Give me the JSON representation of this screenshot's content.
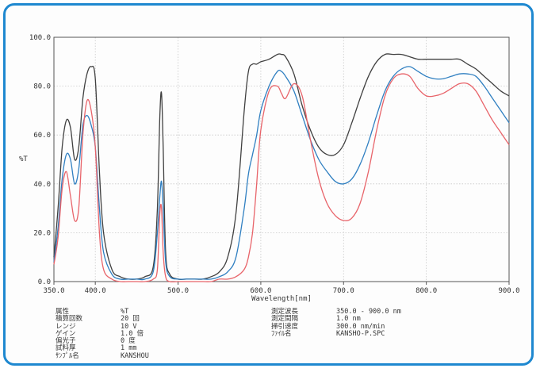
{
  "chart_data": {
    "type": "line",
    "title": "",
    "xlabel": "Wavelength[nm]",
    "ylabel": "%T",
    "xlim": [
      350,
      900
    ],
    "ylim": [
      0,
      100
    ],
    "xticks": [
      "350.0",
      "400.0",
      "500.0",
      "600.0",
      "700.0",
      "800.0",
      "900.0"
    ],
    "yticks": [
      "0.0",
      "20.0",
      "40.0",
      "60.0",
      "80.0",
      "100.0"
    ],
    "grid": true,
    "series": [
      {
        "color": "#404040",
        "x": [
          350,
          355,
          360,
          365,
          370,
          375,
          380,
          385,
          390,
          395,
          400,
          405,
          410,
          420,
          430,
          440,
          450,
          460,
          470,
          475,
          478,
          480,
          482,
          485,
          490,
          500,
          510,
          520,
          530,
          540,
          550,
          560,
          570,
          580,
          585,
          590,
          595,
          600,
          610,
          620,
          625,
          630,
          640,
          650,
          660,
          670,
          680,
          690,
          700,
          710,
          720,
          730,
          740,
          750,
          760,
          770,
          780,
          790,
          800,
          810,
          820,
          830,
          840,
          850,
          860,
          870,
          880,
          890,
          900
        ],
        "y": [
          10,
          30,
          55,
          66,
          63,
          50,
          55,
          75,
          85,
          88,
          83,
          45,
          20,
          5,
          2,
          1,
          1,
          2,
          6,
          30,
          68,
          77,
          55,
          12,
          3,
          1,
          1,
          1,
          1,
          2,
          4,
          10,
          28,
          70,
          86,
          89,
          89,
          90,
          91,
          93,
          93,
          92,
          85,
          72,
          62,
          55,
          52,
          52,
          56,
          65,
          75,
          84,
          90,
          93,
          93,
          93,
          92,
          91,
          91,
          91,
          91,
          91,
          91,
          89,
          87,
          84,
          81,
          78,
          76
        ]
      },
      {
        "color": "#2f7fc1",
        "x": [
          350,
          355,
          360,
          365,
          370,
          375,
          380,
          385,
          390,
          395,
          400,
          405,
          410,
          420,
          430,
          440,
          450,
          460,
          470,
          475,
          478,
          480,
          482,
          485,
          490,
          500,
          510,
          520,
          530,
          540,
          550,
          560,
          570,
          580,
          585,
          590,
          595,
          600,
          610,
          620,
          625,
          630,
          640,
          650,
          660,
          670,
          680,
          690,
          700,
          710,
          720,
          730,
          740,
          750,
          760,
          770,
          780,
          790,
          800,
          810,
          820,
          830,
          840,
          850,
          860,
          870,
          880,
          890,
          900
        ],
        "y": [
          8,
          22,
          42,
          52,
          50,
          40,
          46,
          64,
          68,
          64,
          55,
          30,
          12,
          3,
          1,
          1,
          1,
          1,
          4,
          20,
          35,
          41,
          30,
          8,
          2,
          1,
          1,
          1,
          1,
          1,
          2,
          4,
          10,
          30,
          44,
          52,
          60,
          70,
          80,
          86,
          86,
          84,
          78,
          68,
          58,
          50,
          45,
          41,
          40,
          42,
          48,
          57,
          68,
          78,
          84,
          87,
          88,
          86,
          84,
          83,
          83,
          84,
          85,
          85,
          84,
          80,
          75,
          70,
          65
        ]
      },
      {
        "color": "#e8646a",
        "x": [
          350,
          355,
          360,
          365,
          370,
          375,
          380,
          385,
          390,
          395,
          400,
          405,
          410,
          420,
          430,
          440,
          450,
          460,
          470,
          475,
          478,
          480,
          482,
          485,
          490,
          500,
          510,
          520,
          530,
          540,
          550,
          560,
          570,
          580,
          585,
          590,
          595,
          600,
          610,
          620,
          625,
          630,
          640,
          650,
          660,
          670,
          680,
          690,
          700,
          710,
          720,
          730,
          740,
          750,
          760,
          770,
          780,
          790,
          800,
          810,
          820,
          830,
          840,
          850,
          860,
          870,
          880,
          890,
          900
        ],
        "y": [
          7,
          18,
          38,
          45,
          35,
          25,
          30,
          60,
          74,
          70,
          55,
          20,
          5,
          1,
          0,
          0,
          0,
          0,
          1,
          5,
          28,
          30,
          12,
          2,
          0,
          0,
          0,
          0,
          0,
          0,
          1,
          1,
          2,
          5,
          10,
          20,
          40,
          62,
          78,
          80,
          77,
          75,
          81,
          76,
          58,
          42,
          32,
          27,
          25,
          26,
          32,
          45,
          62,
          76,
          83,
          85,
          84,
          79,
          76,
          76,
          77,
          79,
          81,
          81,
          78,
          72,
          66,
          61,
          56
        ]
      }
    ]
  },
  "params": {
    "left": [
      {
        "label": "属性",
        "value": "%T"
      },
      {
        "label": "積算回数",
        "value": "20 回"
      },
      {
        "label": "レンジ",
        "value": "10 V"
      },
      {
        "label": "ゲイン",
        "value": "1.0 倍"
      },
      {
        "label": "偏光子",
        "value": "0 度"
      },
      {
        "label": "試料厚",
        "value": "1 mm"
      },
      {
        "label": "ｻﾝﾌﾟﾙ名",
        "value": "KANSHOU"
      }
    ],
    "right": [
      {
        "label": "測定波長",
        "value": "350.0 - 900.0 nm"
      },
      {
        "label": "測定間隔",
        "value": "1.0 nm"
      },
      {
        "label": "掃引速度",
        "value": "300.0 nm/min"
      },
      {
        "label": "ﾌｧｲﾙ名",
        "value": "KANSHO-P.SPC"
      }
    ]
  }
}
